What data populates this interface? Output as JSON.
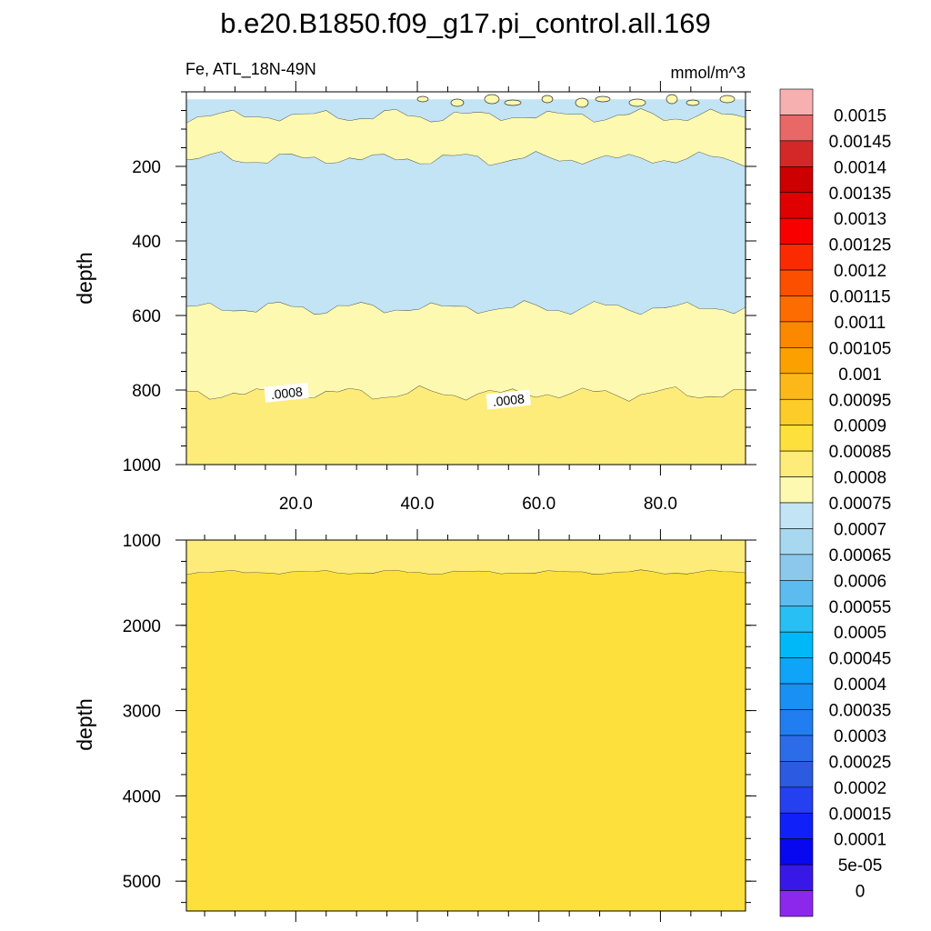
{
  "title": "b.e20.B1850.f09_g17.pi_control.all.169",
  "colors": {
    "light_blue": "#c2e4f4",
    "pale_yellow": "#fdf9b0",
    "yellow": "#fdec7a",
    "deep_yellow": "#fde03c",
    "contour": "#333333"
  },
  "chart_data": [
    {
      "type": "contour",
      "panel": "upper",
      "left_label": "Fe, ATL_18N-49N",
      "right_label": "mmol/m^3",
      "ylabel": "depth",
      "xlabel": "",
      "xlim": [
        2,
        94
      ],
      "ylim": [
        1000,
        0
      ],
      "x_ticks": [
        20,
        40,
        60,
        80
      ],
      "x_tick_labels": [
        "20.0",
        "40.0",
        "60.0",
        "80.0"
      ],
      "y_ticks": [
        200,
        400,
        600,
        800,
        1000
      ],
      "y_tick_labels": [
        "200",
        "400",
        "600",
        "800",
        "1000"
      ],
      "plotted_depth_top": 20,
      "bands": [
        {
          "range": "0.0007-0.00075",
          "depth_from": 20,
          "depth_to": 65
        },
        {
          "range": "0.00075-0.0008",
          "depth_from": 65,
          "depth_to": 180
        },
        {
          "range": "0.0007-0.00075",
          "depth_from": 180,
          "depth_to": 580
        },
        {
          "range": "0.00075-0.0008",
          "depth_from": 580,
          "depth_to": 810
        },
        {
          "range": "0.0008-0.00085",
          "depth_from": 810,
          "depth_to": 1000
        }
      ],
      "contour_labels": [
        {
          "text": ".0008",
          "x": 18.5,
          "depth": 808
        },
        {
          "text": ".0008",
          "x": 55,
          "depth": 827
        }
      ]
    },
    {
      "type": "contour",
      "panel": "lower",
      "ylabel": "depth",
      "xlim": [
        2,
        94
      ],
      "ylim": [
        5350,
        1000
      ],
      "y_ticks": [
        1000,
        2000,
        3000,
        4000,
        5000
      ],
      "y_tick_labels": [
        "1000",
        "2000",
        "3000",
        "4000",
        "5000"
      ],
      "bands": [
        {
          "range": "0.0008-0.00085",
          "depth_from": 1000,
          "depth_to": 1380
        },
        {
          "range": "0.00085-0.0009",
          "depth_from": 1380,
          "depth_to": 5350
        }
      ]
    }
  ],
  "colorbar": {
    "labels": [
      "0.0015",
      "0.00145",
      "0.0014",
      "0.00135",
      "0.0013",
      "0.00125",
      "0.0012",
      "0.00115",
      "0.0011",
      "0.00105",
      "0.001",
      "0.00095",
      "0.0009",
      "0.00085",
      "0.0008",
      "0.00075",
      "0.0007",
      "0.00065",
      "0.0006",
      "0.00055",
      "0.0005",
      "0.00045",
      "0.0004",
      "0.00035",
      "0.0003",
      "0.00025",
      "0.0002",
      "0.00015",
      "0.0001",
      "5e-05",
      "0"
    ],
    "colors": [
      "#f7b0b0",
      "#e86868",
      "#d42828",
      "#cc0000",
      "#e00000",
      "#f80000",
      "#fc2a00",
      "#fc5000",
      "#fc6c00",
      "#fc8800",
      "#fca000",
      "#fcb818",
      "#fdcc28",
      "#fde03c",
      "#fdec7a",
      "#fdf9b0",
      "#c2e4f4",
      "#a8d8f0",
      "#8cc8ec",
      "#5cbcf0",
      "#28c0f4",
      "#00b8f8",
      "#10a4f8",
      "#1890f4",
      "#207ef0",
      "#2c6ce8",
      "#2c5ae0",
      "#2440f0",
      "#1020f8",
      "#0808f0",
      "#3818e8",
      "#8c28ec"
    ]
  }
}
